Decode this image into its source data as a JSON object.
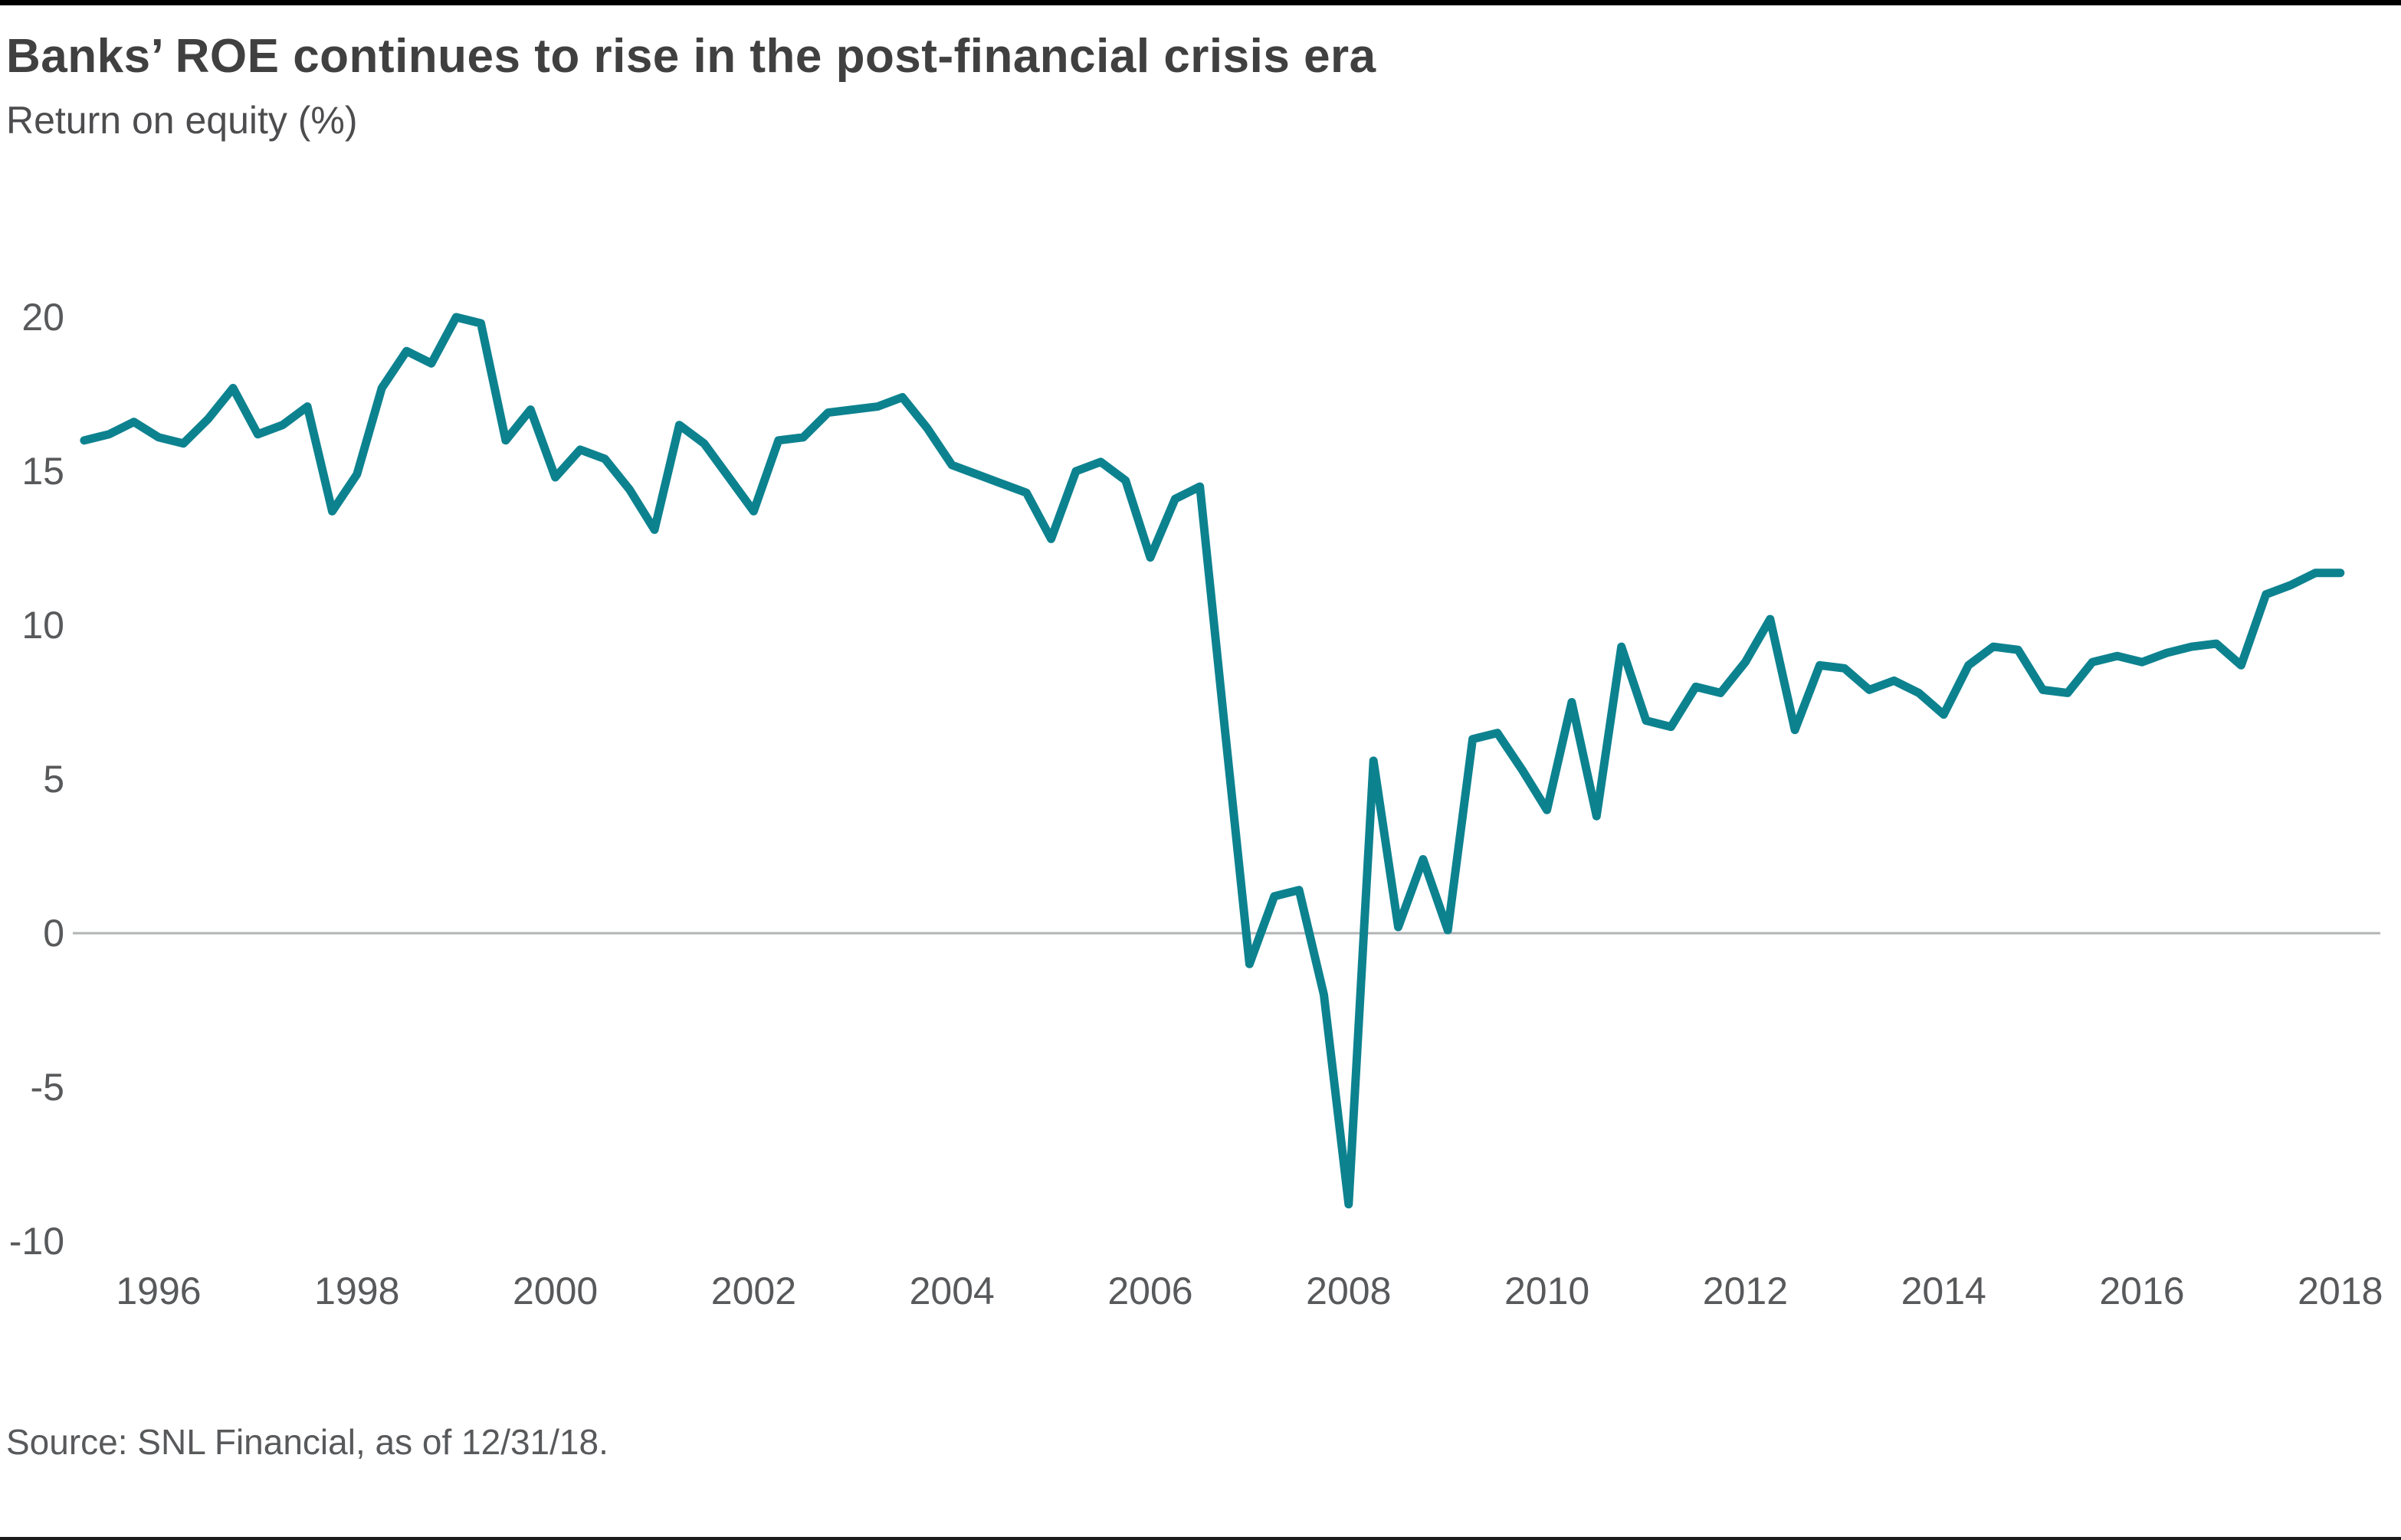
{
  "header": {
    "title": "Banks’ ROE continues to rise in the post-financial crisis era",
    "subtitle": "Return on equity (%)"
  },
  "footer": {
    "source": "Source: SNL Financial, as of 12/31/18."
  },
  "colors": {
    "line": "#0d828f",
    "zero_gridline": "#b1b3b5",
    "text_dark": "#404041",
    "text_gray": "#58595b",
    "top_bar": "#000000"
  },
  "chart_data": {
    "type": "line",
    "title": "Banks’ ROE continues to rise in the post-financial crisis era",
    "ylabel": "Return on equity (%)",
    "xlabel": "",
    "legend": "none",
    "grid": "zero-line-only",
    "ylim": [
      -11,
      21.5
    ],
    "xlim": [
      1995.1,
      2018.6
    ],
    "y_ticks": [
      20,
      15,
      10,
      5,
      0,
      -5,
      -10
    ],
    "x_ticks": [
      1996,
      1998,
      2000,
      2002,
      2004,
      2006,
      2008,
      2010,
      2012,
      2014,
      2016,
      2018
    ],
    "series_name": "Return on equity (%)",
    "x": [
      1995.25,
      1995.5,
      1995.75,
      1996.0,
      1996.25,
      1996.5,
      1996.75,
      1997.0,
      1997.25,
      1997.5,
      1997.75,
      1998.0,
      1998.25,
      1998.5,
      1998.75,
      1999.0,
      1999.25,
      1999.5,
      1999.75,
      2000.0,
      2000.25,
      2000.5,
      2000.75,
      2001.0,
      2001.25,
      2001.5,
      2001.75,
      2002.0,
      2002.25,
      2002.5,
      2002.75,
      2003.0,
      2003.25,
      2003.5,
      2003.75,
      2004.0,
      2004.25,
      2004.5,
      2004.75,
      2005.0,
      2005.25,
      2005.5,
      2005.75,
      2006.0,
      2006.25,
      2006.5,
      2006.75,
      2007.0,
      2007.25,
      2007.5,
      2007.75,
      2008.0,
      2008.25,
      2008.5,
      2008.75,
      2009.0,
      2009.25,
      2009.5,
      2009.75,
      2010.0,
      2010.25,
      2010.5,
      2010.75,
      2011.0,
      2011.25,
      2011.5,
      2011.75,
      2012.0,
      2012.25,
      2012.5,
      2012.75,
      2013.0,
      2013.25,
      2013.5,
      2013.75,
      2014.0,
      2014.25,
      2014.5,
      2014.75,
      2015.0,
      2015.25,
      2015.5,
      2015.75,
      2016.0,
      2016.25,
      2016.5,
      2016.75,
      2017.0,
      2017.25,
      2017.5,
      2017.75,
      2018.0
    ],
    "values": [
      16.0,
      16.2,
      16.6,
      16.1,
      15.9,
      16.7,
      17.7,
      16.2,
      16.5,
      17.1,
      13.7,
      14.9,
      17.7,
      18.9,
      18.5,
      20.0,
      19.8,
      16.0,
      17.0,
      14.8,
      15.7,
      15.4,
      14.4,
      13.1,
      16.5,
      15.9,
      14.8,
      13.7,
      16.0,
      16.1,
      16.9,
      17.0,
      17.1,
      17.4,
      16.4,
      15.2,
      14.9,
      14.6,
      14.3,
      12.8,
      15.0,
      15.3,
      14.7,
      12.2,
      14.1,
      14.5,
      6.7,
      -1.0,
      1.2,
      1.4,
      -2.0,
      -8.8,
      5.6,
      0.2,
      2.4,
      0.1,
      6.3,
      6.5,
      5.3,
      4.0,
      7.5,
      3.8,
      9.3,
      6.9,
      6.7,
      8.0,
      7.8,
      8.8,
      10.2,
      6.6,
      8.7,
      8.6,
      7.9,
      8.2,
      7.8,
      7.1,
      8.7,
      9.3,
      9.2,
      7.9,
      7.8,
      8.8,
      9.0,
      8.8,
      9.1,
      9.3,
      9.4,
      8.7,
      11.0,
      11.3,
      11.7,
      11.7
    ]
  }
}
